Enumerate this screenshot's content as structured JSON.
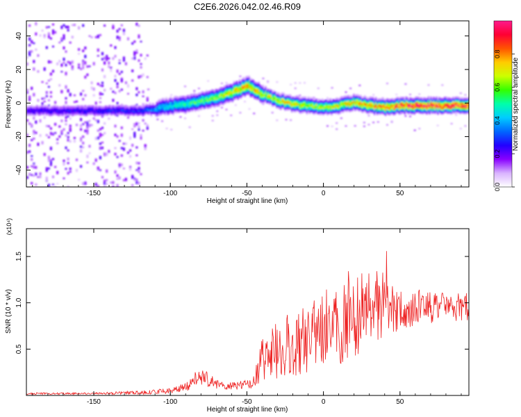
{
  "title": "C2E6.2026.042.02.46.R09",
  "chart_data": [
    {
      "type": "heatmap",
      "id": "spectrogram",
      "xlabel": "Height of straight line (km)",
      "ylabel": "Frequency (Hz)",
      "xlim": [
        -194,
        95
      ],
      "ylim": [
        -50,
        49
      ],
      "xticks": [
        -150,
        -100,
        -50,
        0,
        50
      ],
      "yticks": [
        -40,
        -20,
        0,
        20,
        40
      ],
      "colorbar": {
        "label": "Normalized spectral amplitude",
        "range": [
          0,
          1
        ],
        "ticks": [
          0.0,
          0.2,
          0.4,
          0.6,
          0.8
        ],
        "colors": [
          "#ffffff",
          "#d9b3ff",
          "#8800ff",
          "#2200ff",
          "#0066ff",
          "#00ccff",
          "#00ffaa",
          "#33ff00",
          "#ccff00",
          "#ffcc00",
          "#ff5500",
          "#ff0033",
          "#ff1a8c"
        ]
      },
      "ridge": {
        "x": [
          -194,
          -120,
          -110,
          -100,
          -90,
          -80,
          -70,
          -60,
          -50,
          -45,
          -40,
          -30,
          -20,
          -10,
          0,
          10,
          20,
          30,
          40,
          50,
          60,
          70,
          80,
          95
        ],
        "frequency": [
          -4,
          -4,
          -3,
          -1,
          0,
          2,
          4,
          7,
          11,
          8,
          6,
          2,
          0,
          -1,
          -2,
          -1,
          1,
          -1,
          -2,
          -1,
          -1,
          -1,
          -1,
          -1
        ],
        "peak_amplitude": [
          0.25,
          0.3,
          0.4,
          0.5,
          0.55,
          0.6,
          0.65,
          0.75,
          0.85,
          0.8,
          0.7,
          0.75,
          0.75,
          0.7,
          0.7,
          0.75,
          0.8,
          0.85,
          0.9,
          0.95,
          1.0,
          1.0,
          1.0,
          0.95
        ]
      }
    },
    {
      "type": "line",
      "id": "snr",
      "xlabel": "Height of straight line (km)",
      "ylabel": "SNR (10 * v/v)",
      "multiplier": "(x10⁴)",
      "xlim": [
        -194,
        95
      ],
      "ylim": [
        0,
        1.8
      ],
      "xticks": [
        -150,
        -100,
        -50,
        0,
        50
      ],
      "yticks": [
        0.5,
        1.0,
        1.5
      ],
      "series": [
        {
          "name": "SNR",
          "color": "#ee2222",
          "x": [
            -194,
            -150,
            -120,
            -100,
            -90,
            -85,
            -80,
            -75,
            -70,
            -60,
            -50,
            -45,
            -40,
            -35,
            -30,
            -20,
            -10,
            0,
            10,
            15,
            20,
            25,
            30,
            40,
            50,
            60,
            70,
            80,
            95
          ],
          "y": [
            0.02,
            0.02,
            0.03,
            0.05,
            0.09,
            0.16,
            0.2,
            0.17,
            0.12,
            0.1,
            0.12,
            0.16,
            0.4,
            0.48,
            0.5,
            0.55,
            0.62,
            0.7,
            0.75,
            0.8,
            0.85,
            0.9,
            0.92,
            0.92,
            0.93,
            0.95,
            0.96,
            0.95,
            0.96
          ],
          "spread": [
            0.01,
            0.01,
            0.02,
            0.03,
            0.05,
            0.08,
            0.09,
            0.08,
            0.05,
            0.04,
            0.05,
            0.08,
            0.25,
            0.3,
            0.32,
            0.35,
            0.38,
            0.4,
            0.42,
            0.42,
            0.45,
            0.45,
            0.4,
            0.3,
            0.22,
            0.2,
            0.18,
            0.16,
            0.16
          ]
        }
      ]
    }
  ]
}
